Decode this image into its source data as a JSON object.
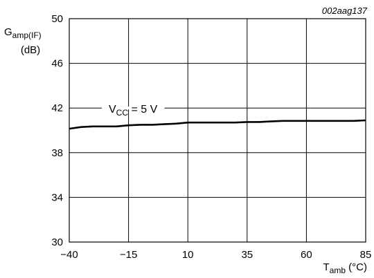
{
  "figure_id": "002aag137",
  "chart_data": {
    "type": "line",
    "ylabel": {
      "main": "G",
      "sub": "amp(IF)",
      "unit": "(dB)"
    },
    "xlabel": {
      "main": "T",
      "sub": "amb",
      "unit": " (°C)"
    },
    "xlim": [
      -40,
      85
    ],
    "ylim": [
      30,
      50
    ],
    "x_ticks": [
      "−40",
      "−15",
      "10",
      "35",
      "60",
      "85"
    ],
    "y_ticks": [
      "30",
      "34",
      "38",
      "42",
      "46",
      "50"
    ],
    "grid": true,
    "series": [
      {
        "annotation": {
          "main": "V",
          "sub": "CC",
          "rest": " = 5 V"
        },
        "x": [
          -40,
          -35,
          -30,
          -25,
          -20,
          -15,
          -10,
          -5,
          0,
          5,
          10,
          15,
          20,
          25,
          30,
          35,
          40,
          45,
          50,
          55,
          60,
          65,
          70,
          75,
          80,
          85
        ],
        "y": [
          40.15,
          40.3,
          40.35,
          40.35,
          40.35,
          40.45,
          40.5,
          40.5,
          40.55,
          40.6,
          40.7,
          40.7,
          40.7,
          40.7,
          40.7,
          40.75,
          40.75,
          40.8,
          40.85,
          40.85,
          40.85,
          40.85,
          40.85,
          40.85,
          40.85,
          40.9
        ]
      }
    ]
  }
}
